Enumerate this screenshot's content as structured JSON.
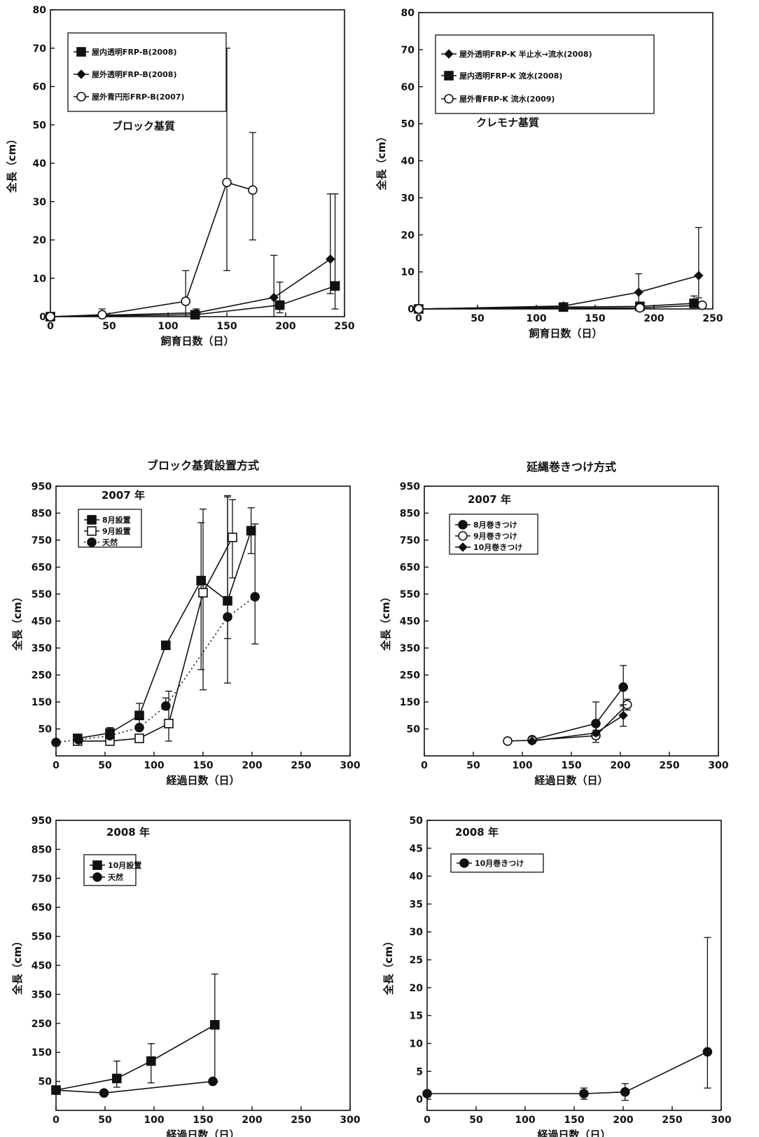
{
  "chart_data": [
    {
      "type": "line",
      "title": "",
      "annotation": "ブロック基質",
      "xlabel": "飼育日数（日）",
      "ylabel": "全長（cm）",
      "xlim": [
        0,
        250
      ],
      "ylim": [
        0,
        80
      ],
      "xticks": [
        "0",
        "50",
        "100",
        "150",
        "200",
        "250"
      ],
      "yticks": [
        "0",
        "10",
        "20",
        "30",
        "40",
        "50",
        "60",
        "70",
        "80"
      ],
      "grid": false,
      "legend_position": "top-left",
      "series": [
        {
          "name": "屋内透明FRP-B(2008)",
          "marker": "square-filled",
          "line": "solid",
          "x": [
            0,
            123,
            195,
            242
          ],
          "y": [
            0,
            0.5,
            3,
            8
          ],
          "err_low": [
            0,
            0,
            2,
            6
          ],
          "err_high": [
            0,
            0,
            6,
            24
          ]
        },
        {
          "name": "屋外透明FRP-B(2008)",
          "marker": "diamond-filled",
          "line": "solid",
          "x": [
            0,
            124,
            190,
            238
          ],
          "y": [
            0,
            1,
            5,
            15
          ],
          "err_low": [
            0,
            1,
            5,
            9
          ],
          "err_high": [
            0,
            1,
            11,
            17
          ]
        },
        {
          "name": "屋外青円形FRP-B(2007)",
          "marker": "circle-open",
          "line": "solid",
          "x": [
            0,
            44,
            115,
            150,
            172
          ],
          "y": [
            0,
            0.5,
            4,
            35,
            33
          ],
          "err_low": [
            0,
            0.5,
            4,
            23,
            13
          ],
          "err_high": [
            0,
            1.5,
            8,
            35,
            15
          ]
        }
      ]
    },
    {
      "type": "line",
      "title": "",
      "annotation": "クレモナ基質",
      "xlabel": "飼育日数（日）",
      "ylabel": "全長（cm）",
      "xlim": [
        0,
        250
      ],
      "ylim": [
        0,
        80
      ],
      "xticks": [
        "0",
        "50",
        "100",
        "150",
        "200",
        "250"
      ],
      "yticks": [
        "0",
        "10",
        "20",
        "30",
        "40",
        "50",
        "60",
        "70",
        "80"
      ],
      "grid": false,
      "legend_position": "top-left",
      "series": [
        {
          "name": "屋外透明FRP-K 半止水→流水(2008)",
          "marker": "diamond-filled",
          "line": "solid",
          "x": [
            0,
            123,
            187,
            238
          ],
          "y": [
            0,
            0.8,
            4.5,
            9
          ],
          "err_low": [
            0,
            0,
            4,
            6
          ],
          "err_high": [
            0,
            0,
            5,
            13
          ]
        },
        {
          "name": "屋内透明FRP-K 流水(2008)",
          "marker": "square-filled",
          "line": "solid",
          "x": [
            0,
            123,
            188,
            234
          ],
          "y": [
            0,
            0.5,
            0.7,
            1.5
          ],
          "err_low": [
            0,
            0,
            0,
            1
          ],
          "err_high": [
            0,
            0,
            0,
            2
          ]
        },
        {
          "name": "屋外青FRP-K 流水(2009)",
          "marker": "circle-open",
          "line": "solid",
          "x": [
            0,
            188,
            241
          ],
          "y": [
            0,
            0.3,
            1
          ],
          "err_low": [
            0,
            0,
            0
          ],
          "err_high": [
            0,
            0,
            0
          ]
        }
      ]
    },
    {
      "type": "line",
      "title": "ブロック基質設置方式",
      "annotation": "2007 年",
      "xlabel": "経過日数（日）",
      "ylabel": "全長（cm）",
      "xlim": [
        0,
        300
      ],
      "ylim": [
        -50,
        950
      ],
      "xticks": [
        "0",
        "50",
        "100",
        "150",
        "200",
        "250",
        "300"
      ],
      "yticks": [
        "50",
        "150",
        "250",
        "350",
        "450",
        "550",
        "650",
        "750",
        "850",
        "950"
      ],
      "ytick_values": [
        50,
        150,
        250,
        350,
        450,
        550,
        650,
        750,
        850,
        950
      ],
      "grid": false,
      "legend_position": "top-left",
      "series": [
        {
          "name": "8月設置",
          "marker": "square-filled",
          "line": "solid",
          "x": [
            22,
            55,
            85,
            112,
            148,
            175,
            199
          ],
          "y": [
            15,
            35,
            100,
            360,
            600,
            525,
            785
          ],
          "err_low": [
            15,
            20,
            45,
            0,
            330,
            140,
            85
          ],
          "err_high": [
            15,
            20,
            45,
            0,
            215,
            390,
            85
          ]
        },
        {
          "name": "9月設置",
          "marker": "square-open",
          "line": "solid",
          "x": [
            22,
            55,
            85,
            115,
            150,
            180
          ],
          "y": [
            5,
            5,
            15,
            70,
            555,
            760
          ],
          "err_low": [
            5,
            5,
            15,
            65,
            360,
            150
          ],
          "err_high": [
            5,
            5,
            15,
            120,
            310,
            140
          ]
        },
        {
          "name": "天然",
          "marker": "circle-filled",
          "line": "dotted",
          "x": [
            0,
            23,
            55,
            85,
            112,
            175,
            203
          ],
          "y": [
            0,
            10,
            25,
            55,
            135,
            465,
            540
          ],
          "err_low": [
            0,
            0,
            0,
            0,
            0,
            245,
            175
          ],
          "err_high": [
            0,
            0,
            0,
            0,
            30,
            445,
            270
          ]
        }
      ]
    },
    {
      "type": "line",
      "title": "延縄巻きつけ方式",
      "annotation": "2007 年",
      "xlabel": "経過日数（日）",
      "ylabel": "全長（cm）",
      "xlim": [
        0,
        300
      ],
      "ylim": [
        -50,
        950
      ],
      "xticks": [
        "0",
        "50",
        "100",
        "150",
        "200",
        "250",
        "300"
      ],
      "yticks": [
        "50",
        "150",
        "250",
        "350",
        "450",
        "550",
        "650",
        "750",
        "850",
        "950"
      ],
      "ytick_values": [
        50,
        150,
        250,
        350,
        450,
        550,
        650,
        750,
        850,
        950
      ],
      "grid": false,
      "legend_position": "top-left",
      "series": [
        {
          "name": "8月巻きつけ",
          "marker": "circle-filled",
          "line": "solid",
          "x": [
            110,
            175,
            203
          ],
          "y": [
            10,
            70,
            205
          ],
          "err_low": [
            0,
            70,
            70
          ],
          "err_high": [
            0,
            80,
            80
          ]
        },
        {
          "name": "9月巻きつけ",
          "marker": "circle-open",
          "line": "solid",
          "x": [
            85,
            110,
            175,
            207
          ],
          "y": [
            5,
            8,
            25,
            140
          ],
          "err_low": [
            0,
            0,
            0,
            20
          ],
          "err_high": [
            0,
            0,
            0,
            20
          ]
        },
        {
          "name": "10月巻きつけ",
          "marker": "diamond-filled",
          "line": "solid",
          "x": [
            110,
            175,
            203
          ],
          "y": [
            5,
            35,
            100
          ],
          "err_low": [
            0,
            10,
            40
          ],
          "err_high": [
            0,
            10,
            40
          ]
        }
      ]
    },
    {
      "type": "line",
      "title": "",
      "annotation": "2008 年",
      "xlabel": "経過日数（日）",
      "ylabel": "全長（cm）",
      "xlim": [
        0,
        300
      ],
      "ylim": [
        -50,
        950
      ],
      "xticks": [
        "0",
        "50",
        "100",
        "150",
        "200",
        "250",
        "300"
      ],
      "yticks": [
        "50",
        "150",
        "250",
        "350",
        "450",
        "550",
        "650",
        "750",
        "850",
        "950"
      ],
      "ytick_values": [
        50,
        150,
        250,
        350,
        450,
        550,
        650,
        750,
        850,
        950
      ],
      "grid": false,
      "legend_position": "top-left",
      "series": [
        {
          "name": "10月設置",
          "marker": "square-filled",
          "line": "solid",
          "x": [
            0,
            62,
            97,
            162
          ],
          "y": [
            20,
            60,
            120,
            245
          ],
          "err_low": [
            0,
            30,
            75,
            195
          ],
          "err_high": [
            0,
            60,
            60,
            175
          ]
        },
        {
          "name": "天然",
          "marker": "circle-filled",
          "line": "solid",
          "x": [
            0,
            49,
            160
          ],
          "y": [
            20,
            10,
            50
          ],
          "err_low": [
            0,
            0,
            0
          ],
          "err_high": [
            0,
            0,
            0
          ]
        }
      ]
    },
    {
      "type": "line",
      "title": "",
      "annotation": "2008 年",
      "xlabel": "経過日数（日）",
      "ylabel": "全長（cm）",
      "xlim": [
        0,
        300
      ],
      "ylim": [
        -2,
        50
      ],
      "xticks": [
        "0",
        "50",
        "100",
        "150",
        "200",
        "250",
        "300"
      ],
      "yticks": [
        "0",
        "5",
        "10",
        "15",
        "20",
        "25",
        "30",
        "35",
        "40",
        "45",
        "50"
      ],
      "ytick_values": [
        0,
        5,
        10,
        15,
        20,
        25,
        30,
        35,
        40,
        45,
        50
      ],
      "grid": false,
      "legend_position": "top-left",
      "series": [
        {
          "name": "10月巻きつけ",
          "marker": "circle-filled",
          "line": "solid",
          "x": [
            0,
            160,
            202,
            286
          ],
          "y": [
            1,
            1,
            1.3,
            8.5
          ],
          "err_low": [
            0,
            1,
            1.5,
            6.5
          ],
          "err_high": [
            0,
            1,
            1.5,
            20.5
          ]
        }
      ]
    }
  ]
}
